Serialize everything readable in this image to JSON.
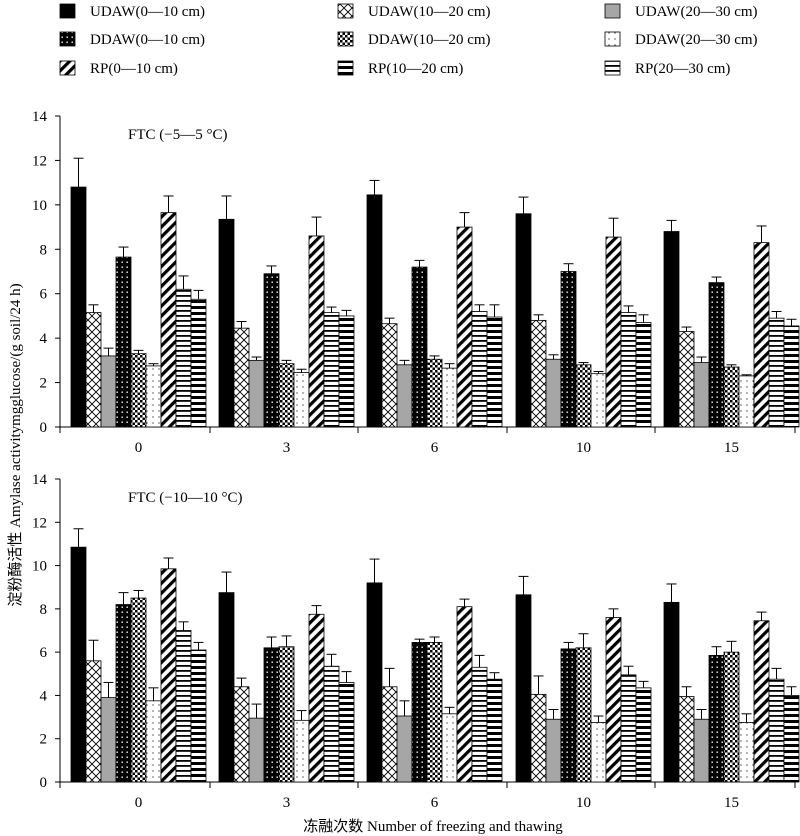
{
  "chart_data": {
    "type": "bar",
    "ylabel": "淀粉酶活性 Amylase activitymgglucose/(g soil/24 h)",
    "xlabel": "冻融次数 Number of freezing and thawing",
    "categories": [
      "0",
      "3",
      "6",
      "10",
      "15"
    ],
    "ylim": [
      0,
      14
    ],
    "yticks": [
      0,
      2,
      4,
      6,
      8,
      10,
      12,
      14
    ],
    "grid": false,
    "legend_position": "top",
    "series_names": [
      "UDAW(0—10 cm)",
      "UDAW(10—20 cm)",
      "UDAW(20—30 cm)",
      "DDAW(0—10 cm)",
      "DDAW(10—20 cm)",
      "DDAW(20—30 cm)",
      "RP(0—10 cm)",
      "RP(10—20 cm)",
      "RP(20—30 cm)"
    ],
    "bar_order": [
      "UDAW(0—10 cm)",
      "UDAW(10—20 cm)",
      "UDAW(20—30 cm)",
      "DDAW(0—10 cm)",
      "DDAW(10—20 cm)",
      "DDAW(20—30 cm)",
      "RP(0—10 cm)",
      "RP(20—30 cm)",
      "RP(10—20 cm)"
    ],
    "panels": [
      {
        "label": "FTC (−5—5 °C)",
        "series": [
          {
            "name": "UDAW(0—10 cm)",
            "values": [
              10.8,
              9.35,
              10.45,
              9.6,
              8.8
            ],
            "errors": [
              1.3,
              1.05,
              0.65,
              0.75,
              0.5
            ]
          },
          {
            "name": "UDAW(10—20 cm)",
            "values": [
              5.15,
              4.45,
              4.65,
              4.8,
              4.3
            ],
            "errors": [
              0.35,
              0.3,
              0.25,
              0.25,
              0.2
            ]
          },
          {
            "name": "UDAW(20—30 cm)",
            "values": [
              3.2,
              3.0,
              2.8,
              3.05,
              2.9
            ],
            "errors": [
              0.35,
              0.15,
              0.2,
              0.2,
              0.25
            ]
          },
          {
            "name": "DDAW(0—10 cm)",
            "values": [
              7.65,
              6.9,
              7.2,
              7.0,
              6.5
            ],
            "errors": [
              0.45,
              0.35,
              0.3,
              0.35,
              0.25
            ]
          },
          {
            "name": "DDAW(10—20 cm)",
            "values": [
              3.3,
              2.85,
              3.05,
              2.8,
              2.7
            ],
            "errors": [
              0.15,
              0.15,
              0.15,
              0.1,
              0.1
            ]
          },
          {
            "name": "DDAW(20—30 cm)",
            "values": [
              2.75,
              2.45,
              2.65,
              2.4,
              2.3
            ],
            "errors": [
              0.1,
              0.15,
              0.2,
              0.1,
              0.05
            ]
          },
          {
            "name": "RP(0—10 cm)",
            "values": [
              9.65,
              8.6,
              9.0,
              8.55,
              8.3
            ],
            "errors": [
              0.75,
              0.85,
              0.65,
              0.85,
              0.75
            ]
          },
          {
            "name": "RP(20—30 cm)",
            "values": [
              6.2,
              5.15,
              5.2,
              5.15,
              4.9
            ],
            "errors": [
              0.6,
              0.25,
              0.3,
              0.3,
              0.3
            ]
          },
          {
            "name": "RP(10—20 cm)",
            "values": [
              5.75,
              5.0,
              4.95,
              4.7,
              4.55
            ],
            "errors": [
              0.4,
              0.25,
              0.55,
              0.35,
              0.3
            ]
          }
        ]
      },
      {
        "label": "FTC (−10—10 °C)",
        "series": [
          {
            "name": "UDAW(0—10 cm)",
            "values": [
              10.85,
              8.75,
              9.2,
              8.65,
              8.3
            ],
            "errors": [
              0.85,
              0.95,
              1.1,
              0.85,
              0.85
            ]
          },
          {
            "name": "UDAW(10—20 cm)",
            "values": [
              5.6,
              4.4,
              4.4,
              4.05,
              3.95
            ],
            "errors": [
              0.95,
              0.4,
              0.85,
              0.85,
              0.45
            ]
          },
          {
            "name": "UDAW(20—30 cm)",
            "values": [
              3.9,
              2.95,
              3.05,
              2.9,
              2.9
            ],
            "errors": [
              0.7,
              0.65,
              0.7,
              0.45,
              0.45
            ]
          },
          {
            "name": "DDAW(0—10 cm)",
            "values": [
              8.2,
              6.2,
              6.45,
              6.15,
              5.85
            ],
            "errors": [
              0.55,
              0.5,
              0.15,
              0.3,
              0.4
            ]
          },
          {
            "name": "DDAW(10—20 cm)",
            "values": [
              8.5,
              6.25,
              6.45,
              6.2,
              6.0
            ],
            "errors": [
              0.35,
              0.5,
              0.25,
              0.65,
              0.5
            ]
          },
          {
            "name": "DDAW(20—30 cm)",
            "values": [
              3.75,
              2.85,
              3.15,
              2.75,
              2.75
            ],
            "errors": [
              0.6,
              0.45,
              0.3,
              0.3,
              0.4
            ]
          },
          {
            "name": "RP(0—10 cm)",
            "values": [
              9.85,
              7.75,
              8.1,
              7.6,
              7.45
            ],
            "errors": [
              0.5,
              0.4,
              0.35,
              0.4,
              0.4
            ]
          },
          {
            "name": "RP(20—30 cm)",
            "values": [
              7.0,
              5.35,
              5.3,
              4.95,
              4.75
            ],
            "errors": [
              0.4,
              0.55,
              0.55,
              0.4,
              0.5
            ]
          },
          {
            "name": "RP(10—20 cm)",
            "values": [
              6.1,
              4.6,
              4.75,
              4.35,
              4.0
            ],
            "errors": [
              0.35,
              0.5,
              0.3,
              0.3,
              0.4
            ]
          }
        ]
      }
    ]
  }
}
